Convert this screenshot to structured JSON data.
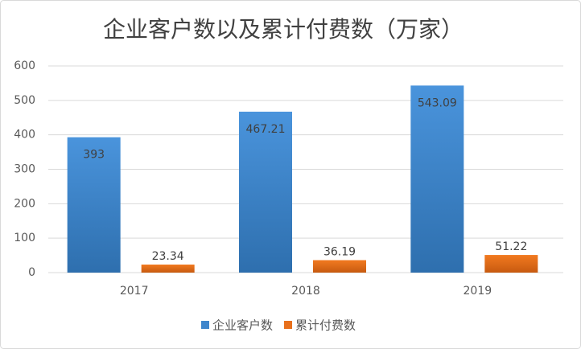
{
  "chart_data": {
    "type": "bar",
    "title": "企业客户数以及累计付费数（万家）",
    "categories": [
      "2017",
      "2018",
      "2019"
    ],
    "series": [
      {
        "name": "企业客户数",
        "color": "#3f86cc",
        "values": [
          393,
          467.21,
          543.09
        ]
      },
      {
        "name": "累计付费数",
        "color": "#e8701c",
        "values": [
          23.34,
          36.19,
          51.22
        ]
      }
    ],
    "ylim": [
      0,
      600
    ],
    "yticks": [
      0,
      100,
      200,
      300,
      400,
      500,
      600
    ],
    "grid": true,
    "legend": "bottom"
  }
}
